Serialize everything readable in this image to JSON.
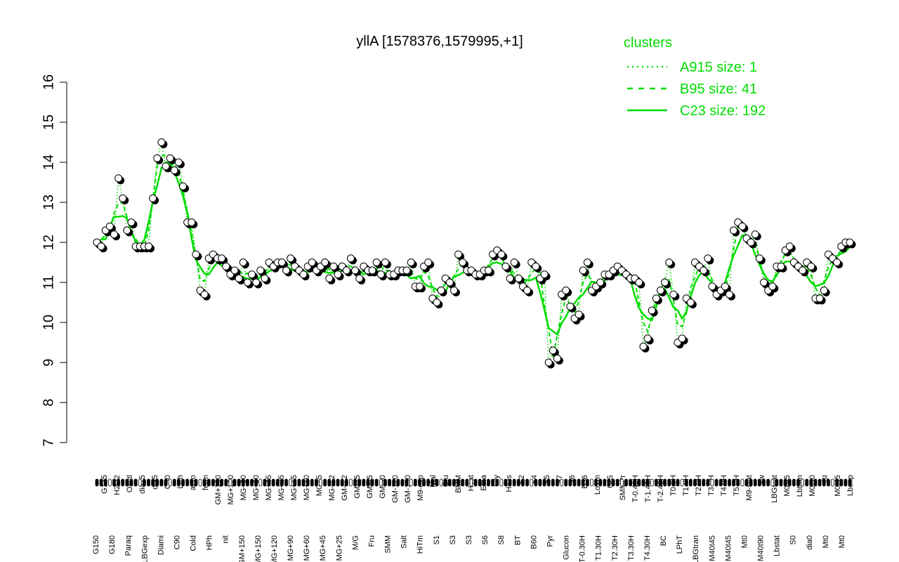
{
  "chart_data": {
    "type": "line",
    "title": "yllA [1578376,1579995,+1]",
    "xlabel": "",
    "ylabel": "",
    "ylim": [
      7,
      16
    ],
    "y_ticks": [
      7,
      8,
      9,
      10,
      11,
      12,
      13,
      14,
      15,
      16
    ],
    "grid": false,
    "legend": {
      "title": "clusters",
      "placement": "top-right",
      "entries": [
        {
          "label": "A915 size: 1",
          "style": "dotted"
        },
        {
          "label": "B95 size: 41",
          "style": "dashed"
        },
        {
          "label": "C23 size: 192",
          "style": "solid"
        }
      ]
    },
    "colors": {
      "series": "#00dd00",
      "points_fill": "#ffffff",
      "points_fill_dark": "#000000",
      "axis": "#000000"
    },
    "x_labels_upper": [
      "G135",
      "H2O2",
      "Oxctl",
      "dia15",
      "dia5",
      "C30",
      "LPh",
      "aero",
      "ferm",
      "GM+150",
      "MG+120",
      "MG+90",
      "MG+60",
      "MG+45",
      "MG+25",
      "MG+15",
      "MG+10",
      "MG+5",
      "MG-0.2",
      "GM-0.2",
      "GM-15",
      "GM-45",
      "GM-90",
      "GM-120",
      "GM-150",
      "M9-exp",
      "Mal",
      "Glu",
      "BMM",
      "Heat",
      "Etha",
      "Gly",
      "HiOs",
      "S2",
      "S4",
      "S5",
      "S7",
      "S6",
      "B36",
      "LoTm",
      "G/S",
      "SMMPr",
      "T-0.40H",
      "T-1.40H",
      "T-2.40H",
      "T0.0H",
      "T1.0H",
      "T2.0H",
      "T3.0H",
      "T4.0H",
      "T5.0H",
      "M9-stat",
      "Sw",
      "LBGstat",
      "M0t45",
      "Lbtran",
      "M0t90",
      "BI",
      "M0t45",
      "Lbexp"
    ],
    "x_labels_lower": [
      "G150",
      "G180",
      "Paraq",
      "LBGexp",
      "Diami",
      "C90",
      "Cold",
      "HPh",
      "nit",
      "GM+150",
      "MG+150",
      "MG+120",
      "MG+90",
      "MG+60",
      "MG+45",
      "MG+25",
      "M/G",
      "Fru",
      "SMM",
      "Salt",
      "HiTm",
      "S1",
      "S3",
      "S3",
      "S6",
      "S8",
      "BT",
      "B60",
      "Pyr",
      "Glucon",
      "T-0.30H",
      "T1.30H",
      "T2.30H",
      "T3.30H",
      "T4.30H",
      "BC",
      "LPhT",
      "LBGtran",
      "M40t45",
      "M40t45",
      "Mt0",
      "M40t90",
      "Lbstat",
      "S0",
      "dia0",
      "Mt0",
      "Mt0"
    ],
    "series": [
      {
        "values": [
          12.0,
          11.9,
          12.3,
          12.4,
          12.2,
          13.6,
          13.1,
          12.3,
          12.5,
          11.9,
          11.9,
          11.9,
          11.9,
          13.1,
          14.1,
          14.5,
          13.9,
          14.1,
          13.8,
          14.0,
          13.4,
          12.5,
          12.5,
          11.7,
          10.8,
          10.7,
          11.6,
          11.7,
          11.6,
          11.6,
          11.4,
          11.2,
          11.3,
          11.1,
          11.5,
          11.0,
          11.2,
          11.0,
          11.3,
          11.1,
          11.5,
          11.4,
          11.5,
          11.5,
          11.3,
          11.6,
          11.4,
          11.3,
          11.2,
          11.4,
          11.5,
          11.3,
          11.4,
          11.5,
          11.1,
          11.4,
          11.2,
          11.4,
          11.3,
          11.6,
          11.3,
          11.1,
          11.4,
          11.3,
          11.3,
          11.5,
          11.2,
          11.5,
          11.2,
          11.2,
          11.3,
          11.3,
          11.3,
          11.5,
          10.9,
          10.9,
          11.4,
          11.5,
          10.6,
          10.5,
          10.8,
          11.1,
          11.0,
          10.8,
          11.7,
          11.5,
          11.3,
          11.3,
          11.2,
          11.2,
          11.3,
          11.3,
          11.7,
          11.8,
          11.7,
          11.4,
          11.1,
          11.5,
          11.1,
          10.9,
          10.8,
          11.5,
          11.4,
          11.1,
          11.2,
          9.0,
          9.3,
          9.1,
          10.7,
          10.8,
          10.4,
          10.1,
          10.2,
          11.3,
          11.5,
          10.8,
          10.9,
          11.0,
          11.2,
          11.2,
          11.3,
          11.4,
          11.3,
          11.2,
          11.1,
          11.1,
          11.0,
          9.4,
          9.6,
          10.3,
          10.6,
          10.8,
          11.0,
          11.5,
          10.7,
          9.5,
          9.6,
          10.6,
          10.5,
          11.5,
          11.4,
          11.3,
          11.6,
          10.9,
          10.7,
          10.8,
          10.9,
          10.7,
          12.3,
          12.5,
          12.4,
          12.1,
          12.0,
          12.2,
          11.6,
          11.0,
          10.8,
          10.9,
          11.4,
          11.4,
          11.8,
          11.9,
          11.5,
          11.4,
          11.3,
          11.5,
          11.4,
          10.6,
          10.6,
          10.8,
          11.7,
          11.6,
          11.5,
          11.9,
          12.0,
          12.0
        ]
      }
    ]
  }
}
